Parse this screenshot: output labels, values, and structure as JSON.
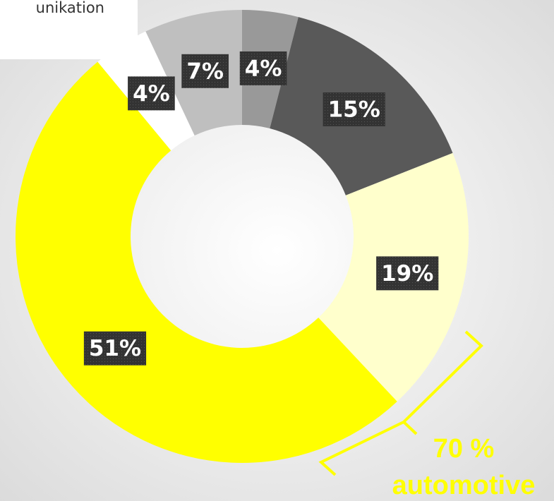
{
  "chart_data": {
    "type": "donut",
    "legend_text": "unikation",
    "categories": [
      null,
      null,
      null,
      null,
      null,
      null
    ],
    "values": [
      4,
      15,
      19,
      51,
      4,
      7
    ],
    "value_labels": [
      "4%",
      "15%",
      "19%",
      "51%",
      "4%",
      "7%"
    ],
    "colors": [
      "#999999",
      "#595959",
      "#ffffcc",
      "#ffff00",
      "#ffffff",
      "#bfbfbf"
    ],
    "annotation": [
      "70 %",
      "automotive"
    ]
  }
}
